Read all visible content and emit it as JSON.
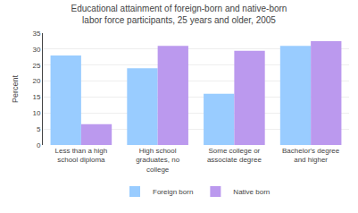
{
  "chart_data": {
    "type": "bar",
    "title": "Educational attainment of foreign-born and native-born\nlabor force participants, 25 years and older, 2005",
    "categories": [
      "Less than a high\nschool diploma",
      "High school\ngraduates, no\ncollege",
      "Some college or\nassociate degree",
      "Bachelor's degree\nand higher"
    ],
    "series": [
      {
        "name": "Foreign born",
        "color": "#99CCFF",
        "values": [
          28,
          24,
          16,
          31
        ]
      },
      {
        "name": "Native born",
        "color": "#BB99EE",
        "values": [
          6.5,
          31,
          29.5,
          32.5
        ]
      }
    ],
    "ylabel": "Percent",
    "ylim": [
      0,
      35
    ],
    "yticks": [
      0,
      5,
      10,
      15,
      20,
      25,
      30,
      35
    ],
    "grid": true,
    "legend": "bottom"
  }
}
